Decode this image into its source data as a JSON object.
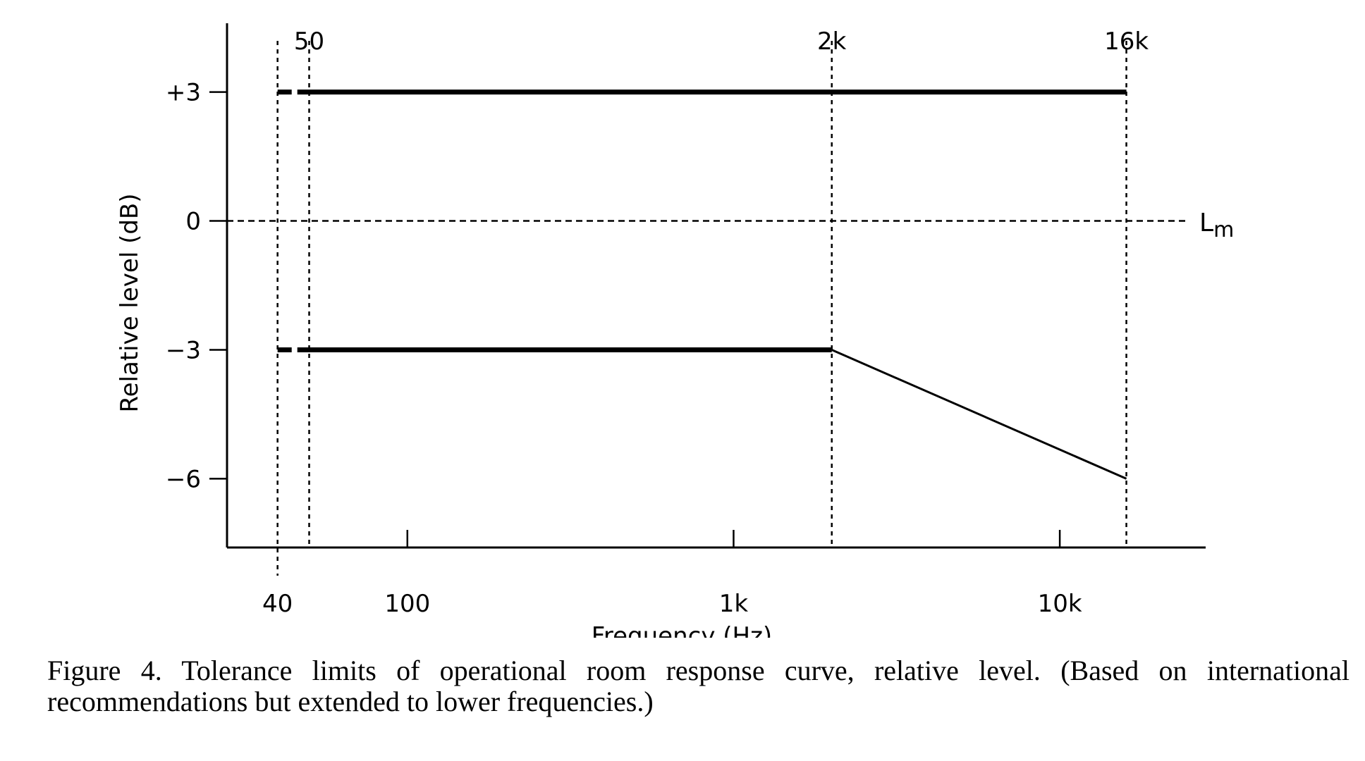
{
  "chart_data": {
    "type": "line",
    "xscale": "log",
    "xlabel": "Frequency (Hz)",
    "ylabel": "Relative level (dB)",
    "xlim": [
      28,
      28000
    ],
    "ylim": [
      -7.6,
      4.6
    ],
    "x_ticks": [
      {
        "value": 40,
        "label": "40"
      },
      {
        "value": 100,
        "label": "100"
      },
      {
        "value": 1000,
        "label": "1k"
      },
      {
        "value": 10000,
        "label": "10k"
      }
    ],
    "top_ticks": [
      {
        "value": 50,
        "label": "50"
      },
      {
        "value": 2000,
        "label": "2k"
      },
      {
        "value": 16000,
        "label": "16k"
      }
    ],
    "y_ticks": [
      {
        "value": 3,
        "label": "+3"
      },
      {
        "value": 0,
        "label": "0"
      },
      {
        "value": -3,
        "label": "−3"
      },
      {
        "value": -6,
        "label": "−6"
      }
    ],
    "reference_line": {
      "y": 0,
      "label_main": "L",
      "label_sub": "m"
    },
    "guide_lines_x": [
      40,
      50,
      2000,
      16000
    ],
    "series": [
      {
        "line": "upper-limit",
        "style": "solid",
        "x": [
          50,
          16000
        ],
        "y": [
          3,
          3
        ]
      },
      {
        "line": "upper-limit-extension",
        "style": "dashed",
        "x": [
          40,
          50
        ],
        "y": [
          3,
          3
        ]
      },
      {
        "line": "lower-limit",
        "style": "solid",
        "x": [
          50,
          2000
        ],
        "y": [
          -3,
          -3
        ]
      },
      {
        "line": "lower-limit-extension",
        "style": "dashed",
        "x": [
          40,
          50
        ],
        "y": [
          -3,
          -3
        ]
      },
      {
        "line": "lower-limit-slope",
        "style": "solid",
        "x": [
          2000,
          16000
        ],
        "y": [
          -3,
          -6
        ]
      }
    ]
  },
  "caption": "Figure 4. Tolerance limits of operational room response curve, relative level. (Based on international recommendations but extended to lower frequencies.)"
}
